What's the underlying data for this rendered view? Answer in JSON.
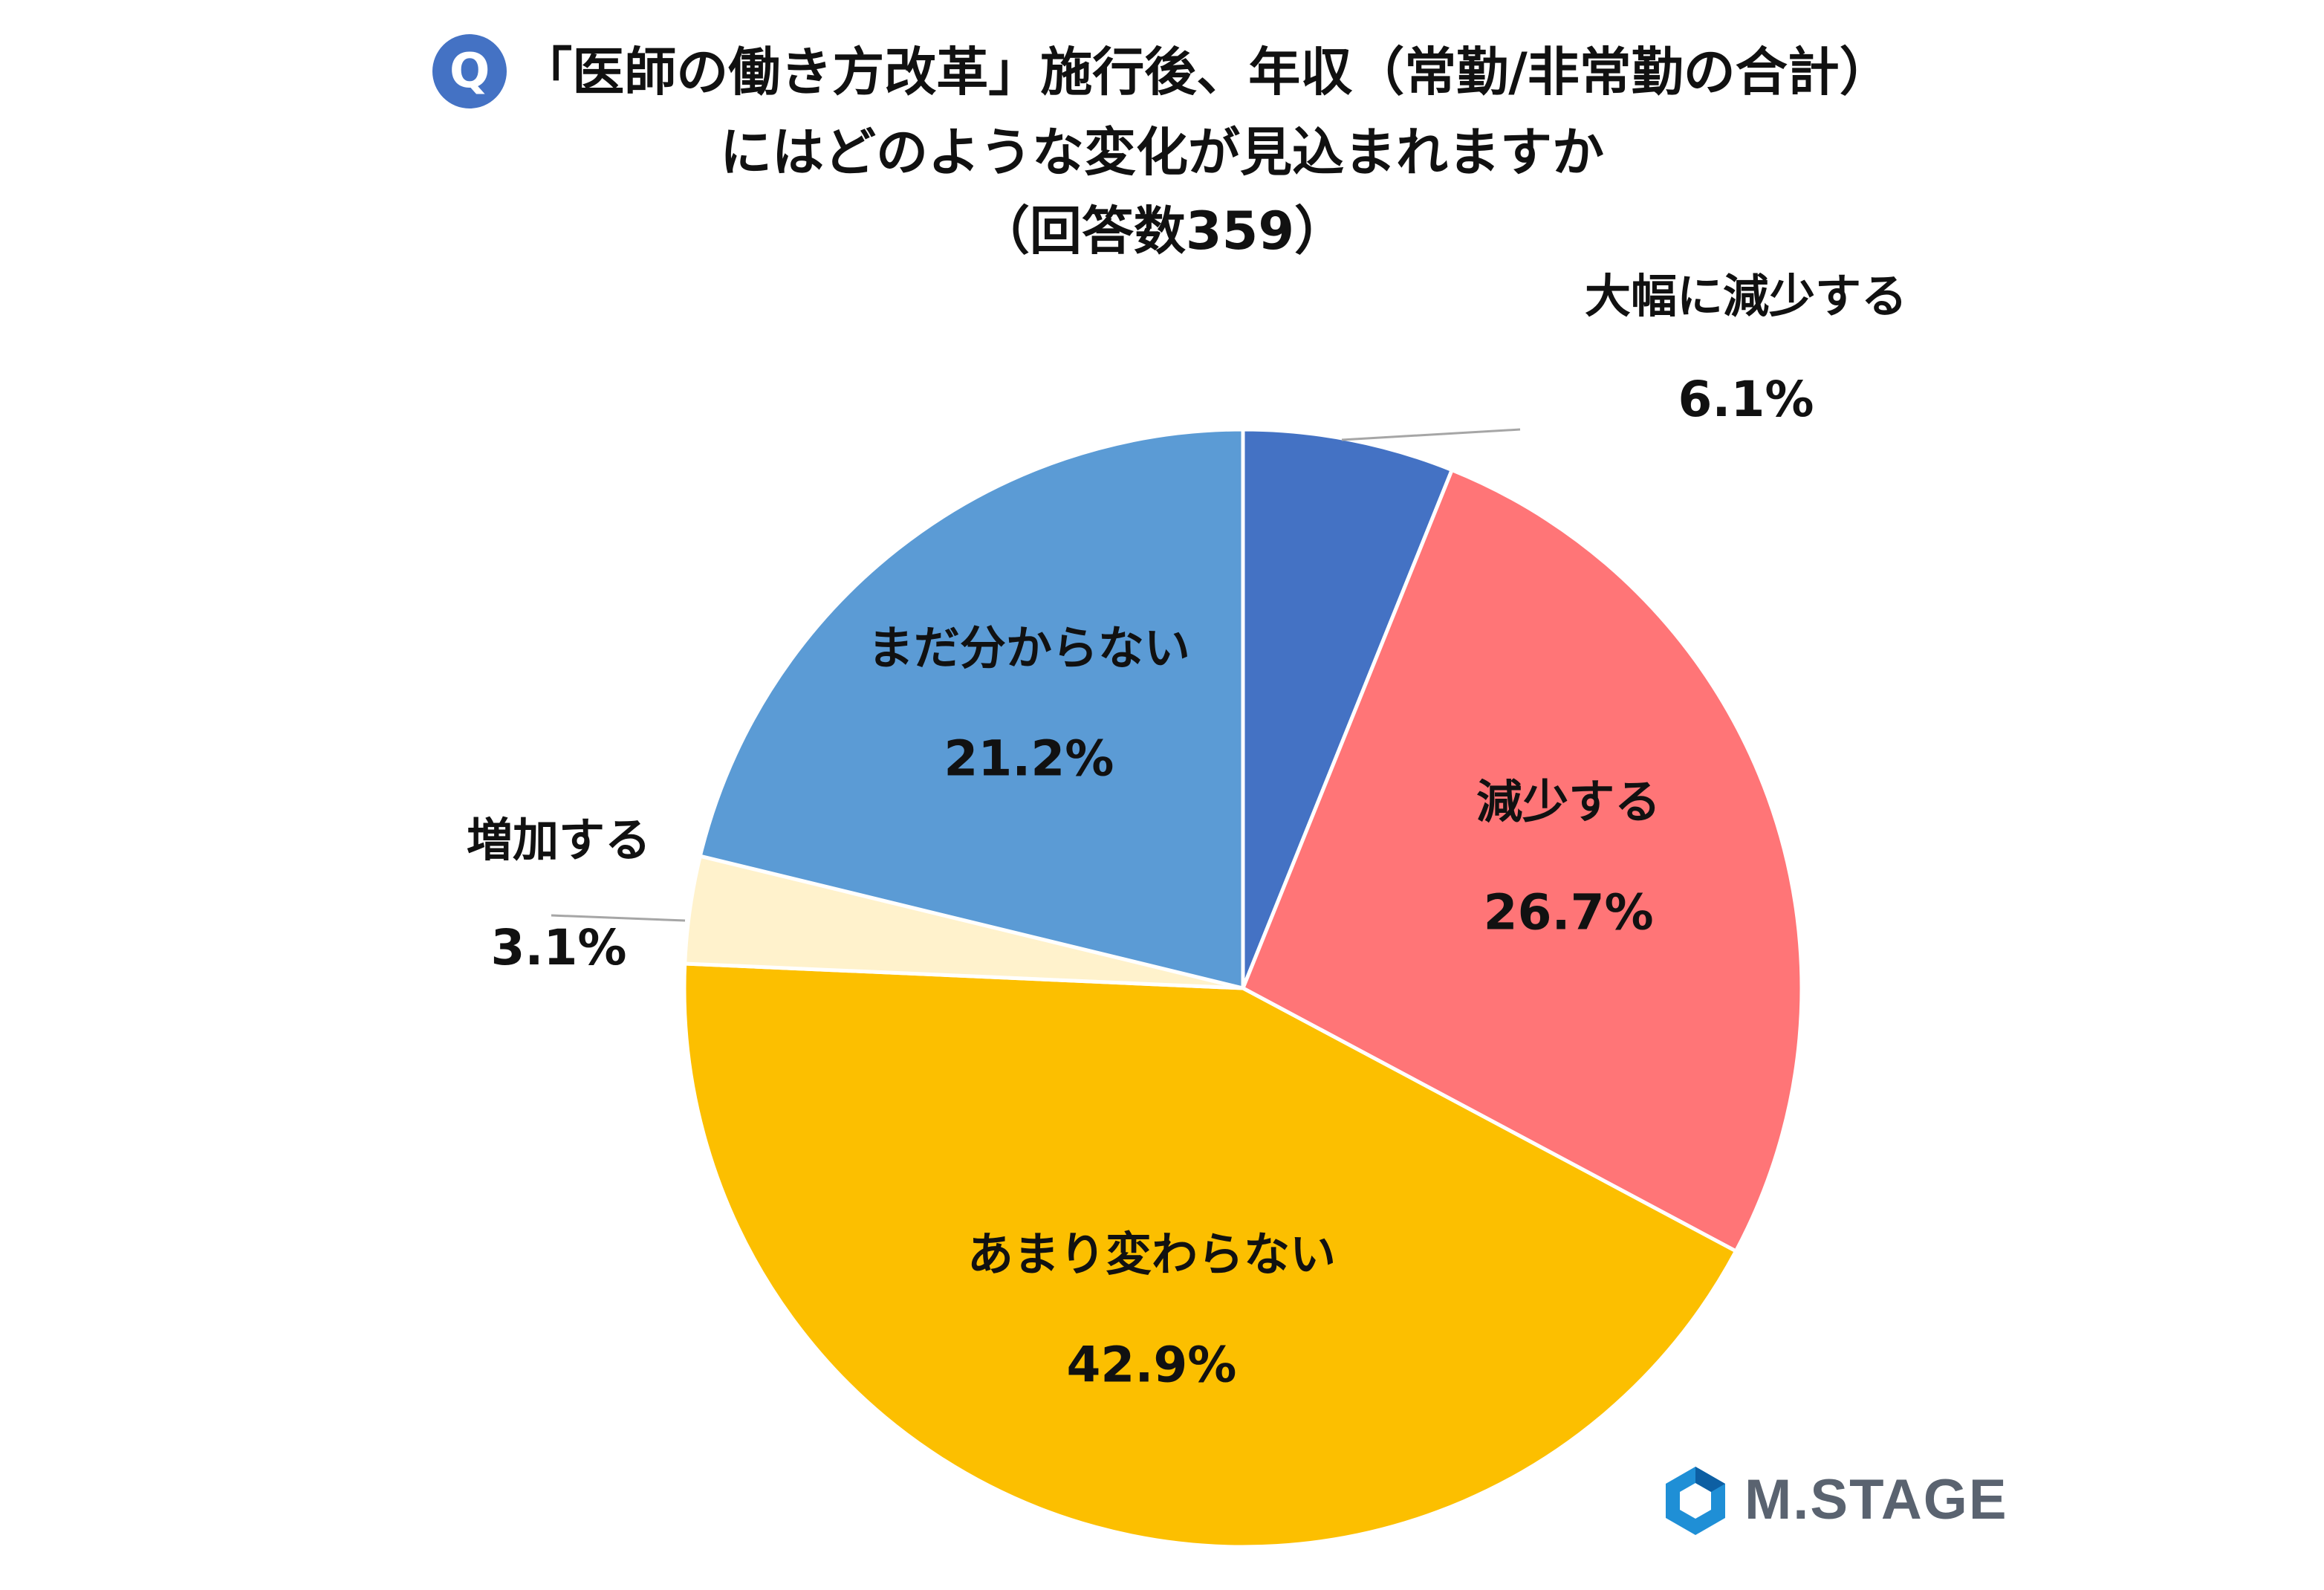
{
  "badge": "Q",
  "title_lines": [
    "「医師の働き方改革」施行後、年収（常勤/非常勤の合計）",
    "にはどのような変化が見込まれますか",
    "（回答数359）"
  ],
  "logo_text": "M.STAGE",
  "colors": {
    "accent": "#4472c4",
    "logo_blue": "#1f8fd6",
    "logo_gray": "#5a6370"
  },
  "chart_data": {
    "type": "pie",
    "title": "「医師の働き方改革」施行後、年収（常勤/非常勤の合計）にはどのような変化が見込まれますか（回答数359）",
    "unit": "%",
    "start": "12 o'clock",
    "direction": "clockwise",
    "slices": [
      {
        "label": "大幅に減少する",
        "value": 6.1,
        "display": "6.1%",
        "color": "#4472c4",
        "label_position": "outside"
      },
      {
        "label": "減少する",
        "value": 26.7,
        "display": "26.7%",
        "color": "#ff7577",
        "label_position": "inside"
      },
      {
        "label": "あまり変わらない",
        "value": 42.9,
        "display": "42.9%",
        "color": "#fcbf00",
        "label_position": "inside"
      },
      {
        "label": "増加する",
        "value": 3.1,
        "display": "3.1%",
        "color": "#fff2cc",
        "label_position": "outside"
      },
      {
        "label": "まだ分からない",
        "value": 21.2,
        "display": "21.2%",
        "color": "#5b9bd5",
        "label_position": "inside"
      }
    ]
  }
}
